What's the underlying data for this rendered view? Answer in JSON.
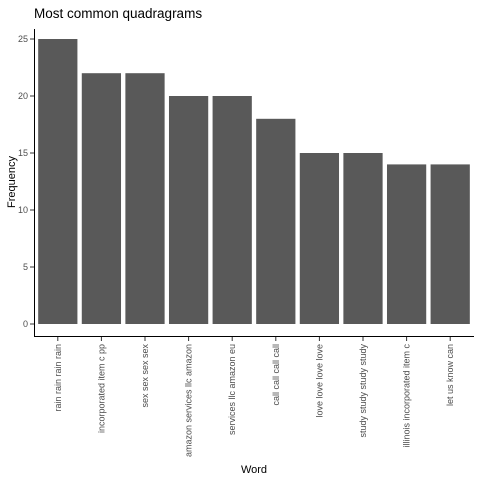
{
  "chart_data": {
    "type": "bar",
    "title": "Most common quadragrams",
    "xlabel": "Word",
    "ylabel": "Frequency",
    "categories": [
      "rain rain rain rain",
      "incorporated item c pp",
      "sex sex sex sex",
      "amazon services llc amazon",
      "services llc amazon eu",
      "call call call call",
      "love love love love",
      "study study study study",
      "illinois incorporated item c",
      "let us know can"
    ],
    "values": [
      25,
      22,
      22,
      20,
      20,
      18,
      15,
      15,
      14,
      14
    ],
    "yticks": [
      "0",
      "5",
      "10",
      "15",
      "20",
      "25"
    ],
    "ylim": [
      0,
      26.25
    ],
    "grid": false,
    "bar_color": "#595959"
  }
}
